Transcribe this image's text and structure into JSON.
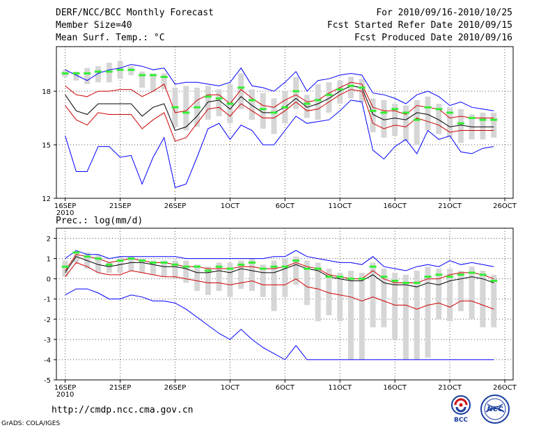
{
  "header": {
    "title": "DERF/NCC/BCC Monthly Forecast",
    "member_size": "Member Size=40",
    "variable": "Mean Surf. Temp.: °C",
    "period": "For 2010/09/16-2010/10/25",
    "started": "Fcst Started Refer Date 2010/09/15",
    "produced": "Fcst Produced Date 2010/09/16"
  },
  "footer": {
    "url": "http://cmdp.ncc.cma.gov.cn",
    "credit": "GrADS: COLA/IGES",
    "logo_left": "BCC",
    "logo_right": "NCC"
  },
  "colors": {
    "envelope": "#0000ff",
    "spread": "#cc0000",
    "mean": "#000000",
    "member_marker": "#33ee33",
    "box": "#d6d6d6",
    "grid": "#555555"
  },
  "chart_data": [
    {
      "type": "line",
      "title": "",
      "ylabel": "Mean Surf. Temp.: °C",
      "xlabel": "",
      "ylim": [
        12,
        20.5
      ],
      "yticks": [
        12,
        15,
        18
      ],
      "xlim": [
        16,
        56
      ],
      "xticks": [
        {
          "day": 16,
          "label": "16SEP"
        },
        {
          "day": 21,
          "label": "21SEP"
        },
        {
          "day": 26,
          "label": "26SEP"
        },
        {
          "day": 31,
          "label": "1OCT"
        },
        {
          "day": 36,
          "label": "6OCT"
        },
        {
          "day": 41,
          "label": "11OCT"
        },
        {
          "day": 46,
          "label": "16OCT"
        },
        {
          "day": 51,
          "label": "21OCT"
        },
        {
          "day": 56,
          "label": "26OCT"
        }
      ],
      "year_label": "2010",
      "grid": true,
      "x": [
        16,
        17,
        18,
        19,
        20,
        21,
        22,
        23,
        24,
        25,
        26,
        27,
        28,
        29,
        30,
        31,
        32,
        33,
        34,
        35,
        36,
        37,
        38,
        39,
        40,
        41,
        42,
        43,
        44,
        45,
        46,
        47,
        48,
        49,
        50,
        51,
        52,
        53,
        54,
        55
      ],
      "series": [
        {
          "name": "max",
          "role": "envelope",
          "values": [
            19.2,
            18.9,
            18.6,
            19.0,
            19.2,
            19.3,
            19.5,
            19.4,
            19.2,
            19.3,
            18.4,
            18.5,
            18.5,
            18.4,
            18.3,
            18.5,
            19.3,
            18.3,
            18.2,
            18.0,
            18.5,
            19.1,
            18.0,
            18.6,
            18.7,
            18.9,
            19.0,
            18.9,
            17.9,
            17.8,
            17.6,
            17.3,
            17.8,
            18.0,
            17.7,
            17.2,
            17.4,
            17.1,
            17.0,
            16.9
          ]
        },
        {
          "name": "upper",
          "role": "spread",
          "values": [
            18.3,
            17.8,
            17.7,
            18.0,
            18.0,
            18.1,
            18.1,
            17.7,
            18.0,
            18.4,
            16.8,
            16.9,
            17.5,
            17.8,
            17.8,
            17.3,
            18.1,
            17.6,
            17.2,
            17.1,
            17.5,
            17.8,
            17.4,
            17.5,
            17.9,
            18.2,
            18.5,
            18.4,
            17.1,
            16.9,
            16.9,
            16.7,
            17.2,
            17.1,
            17.0,
            16.5,
            16.6,
            16.5,
            16.5,
            16.5
          ]
        },
        {
          "name": "mean",
          "role": "mean",
          "values": [
            17.8,
            16.9,
            16.7,
            17.3,
            17.3,
            17.3,
            17.3,
            16.6,
            17.1,
            17.3,
            15.8,
            16.0,
            16.6,
            17.4,
            17.5,
            17.0,
            17.7,
            17.2,
            16.8,
            16.8,
            17.1,
            17.6,
            17.1,
            17.3,
            17.6,
            18.0,
            18.3,
            18.2,
            16.7,
            16.4,
            16.5,
            16.4,
            16.8,
            16.7,
            16.4,
            16.0,
            16.1,
            16.0,
            16.0,
            16.0
          ]
        },
        {
          "name": "lower",
          "role": "spread",
          "values": [
            17.2,
            16.4,
            16.1,
            16.8,
            16.7,
            16.7,
            16.7,
            15.9,
            16.4,
            16.8,
            15.2,
            15.4,
            16.2,
            17.0,
            17.1,
            16.6,
            17.3,
            16.9,
            16.5,
            16.5,
            16.9,
            17.4,
            16.9,
            17.0,
            17.4,
            17.8,
            18.1,
            18.0,
            16.2,
            15.9,
            16.1,
            16.0,
            16.5,
            16.3,
            16.1,
            15.7,
            15.8,
            15.8,
            15.8,
            15.8
          ]
        },
        {
          "name": "min",
          "role": "envelope",
          "values": [
            15.5,
            13.5,
            13.5,
            14.9,
            14.9,
            14.3,
            14.4,
            12.8,
            14.3,
            15.4,
            12.6,
            12.8,
            14.3,
            15.9,
            16.2,
            15.3,
            16.1,
            15.8,
            15.0,
            15.0,
            15.8,
            16.6,
            16.2,
            16.3,
            16.4,
            16.9,
            17.5,
            17.4,
            14.7,
            14.2,
            14.9,
            15.3,
            14.5,
            15.8,
            15.3,
            15.5,
            14.6,
            14.5,
            14.8,
            14.9
          ]
        }
      ],
      "markers": {
        "name": "member",
        "role": "member_marker",
        "values": [
          19.0,
          19.0,
          19.0,
          19.1,
          19.1,
          19.2,
          19.2,
          18.9,
          18.9,
          18.8,
          17.1,
          16.8,
          17.1,
          17.7,
          17.6,
          17.3,
          18.2,
          17.5,
          17.0,
          16.8,
          17.1,
          18.0,
          17.3,
          17.5,
          17.8,
          18.1,
          18.3,
          18.2,
          16.9,
          16.8,
          17.0,
          16.8,
          16.4,
          17.1,
          17.0,
          16.8,
          16.2,
          16.5,
          16.4,
          16.4
        ]
      },
      "boxes": {
        "name": "ensemble-range",
        "role": "box",
        "low": [
          18.8,
          18.6,
          18.4,
          18.5,
          18.5,
          18.7,
          18.9,
          18.2,
          18.0,
          18.1,
          16.0,
          15.8,
          16.0,
          16.4,
          16.6,
          16.2,
          17.0,
          16.4,
          15.9,
          15.6,
          16.2,
          17.0,
          16.5,
          16.4,
          16.8,
          17.3,
          17.6,
          17.4,
          15.7,
          15.4,
          15.5,
          15.2,
          15.0,
          15.8,
          15.6,
          15.4,
          15.1,
          15.3,
          15.3,
          15.4
        ],
        "high": [
          19.2,
          19.1,
          19.3,
          19.4,
          19.6,
          19.7,
          19.4,
          19.1,
          19.0,
          19.0,
          18.2,
          18.3,
          18.2,
          18.3,
          18.1,
          18.4,
          19.0,
          18.1,
          17.9,
          17.6,
          18.0,
          18.8,
          17.8,
          18.4,
          18.5,
          18.6,
          18.8,
          18.7,
          17.6,
          17.5,
          17.3,
          17.2,
          17.5,
          17.7,
          17.3,
          17.1,
          17.0,
          16.7,
          16.8,
          16.8
        ]
      }
    },
    {
      "type": "line",
      "title": "",
      "ylabel": "Prec.: log(mm/d)",
      "xlabel": "",
      "ylim": [
        -5,
        2.5
      ],
      "yticks": [
        -5,
        -4,
        -3,
        -2,
        -1,
        0,
        1,
        2
      ],
      "xlim": [
        16,
        56
      ],
      "xticks": [
        {
          "day": 16,
          "label": "16SEP"
        },
        {
          "day": 21,
          "label": "21SEP"
        },
        {
          "day": 26,
          "label": "26SEP"
        },
        {
          "day": 31,
          "label": "1OCT"
        },
        {
          "day": 36,
          "label": "6OCT"
        },
        {
          "day": 41,
          "label": "11OCT"
        },
        {
          "day": 46,
          "label": "16OCT"
        },
        {
          "day": 51,
          "label": "21OCT"
        },
        {
          "day": 56,
          "label": "26OCT"
        }
      ],
      "year_label": "2010",
      "grid": true,
      "x": [
        16,
        17,
        18,
        19,
        20,
        21,
        22,
        23,
        24,
        25,
        26,
        27,
        28,
        29,
        30,
        31,
        32,
        33,
        34,
        35,
        36,
        37,
        38,
        39,
        40,
        41,
        42,
        43,
        44,
        45,
        46,
        47,
        48,
        49,
        50,
        51,
        52,
        53,
        54,
        55
      ],
      "series": [
        {
          "name": "max",
          "role": "envelope",
          "values": [
            1.0,
            1.4,
            1.2,
            1.2,
            1.0,
            1.1,
            1.1,
            1.1,
            1.1,
            1.1,
            1.1,
            1.0,
            1.0,
            1.0,
            1.0,
            1.0,
            1.0,
            1.0,
            1.0,
            1.1,
            1.1,
            1.4,
            1.1,
            1.0,
            0.9,
            0.8,
            0.8,
            0.7,
            1.1,
            0.6,
            0.5,
            0.4,
            0.6,
            0.7,
            0.6,
            0.9,
            0.7,
            0.8,
            0.7,
            0.6
          ]
        },
        {
          "name": "upper",
          "role": "spread",
          "values": [
            0.4,
            1.2,
            1.1,
            1.0,
            0.8,
            0.9,
            1.0,
            0.9,
            0.8,
            0.8,
            0.7,
            0.6,
            0.6,
            0.5,
            0.5,
            0.5,
            0.6,
            0.6,
            0.5,
            0.5,
            0.6,
            0.8,
            0.6,
            0.5,
            0.2,
            0.1,
            0.0,
            0.0,
            0.4,
            0.0,
            -0.2,
            -0.2,
            -0.2,
            0.0,
            0.0,
            0.2,
            0.3,
            0.3,
            0.2,
            0.0
          ]
        },
        {
          "name": "mean",
          "role": "mean",
          "values": [
            0.3,
            1.1,
            0.9,
            0.7,
            0.6,
            0.7,
            0.8,
            0.8,
            0.7,
            0.6,
            0.6,
            0.5,
            0.3,
            0.3,
            0.4,
            0.3,
            0.5,
            0.4,
            0.3,
            0.3,
            0.5,
            0.7,
            0.5,
            0.4,
            0.1,
            0.0,
            -0.1,
            -0.1,
            0.2,
            -0.2,
            -0.3,
            -0.3,
            -0.4,
            -0.2,
            -0.3,
            -0.1,
            0.0,
            0.1,
            0.0,
            -0.2
          ]
        },
        {
          "name": "lower",
          "role": "spread",
          "values": [
            0.1,
            0.8,
            0.6,
            0.3,
            0.2,
            0.2,
            0.4,
            0.3,
            0.2,
            0.1,
            0.1,
            0.0,
            -0.1,
            -0.2,
            -0.2,
            -0.3,
            -0.2,
            -0.1,
            -0.3,
            -0.3,
            -0.3,
            0.0,
            -0.4,
            -0.5,
            -0.7,
            -0.8,
            -0.9,
            -1.1,
            -0.9,
            -1.1,
            -1.3,
            -1.3,
            -1.5,
            -1.3,
            -1.2,
            -1.4,
            -1.1,
            -1.1,
            -1.3,
            -1.5
          ]
        },
        {
          "name": "min",
          "role": "envelope",
          "values": [
            -0.8,
            -0.5,
            -0.5,
            -0.7,
            -1.0,
            -1.0,
            -0.8,
            -0.9,
            -1.1,
            -1.1,
            -1.2,
            -1.5,
            -1.9,
            -2.3,
            -2.7,
            -3.0,
            -2.5,
            -3.0,
            -3.4,
            -3.7,
            -4.0,
            -3.3,
            -4.0,
            -4.0,
            -4.0,
            -4.0,
            -4.0,
            -4.0,
            -4.0,
            -4.0,
            -4.0,
            -4.0,
            -4.0,
            -4.0,
            -4.0,
            -4.0,
            -4.0,
            -4.0,
            -4.0,
            -4.0
          ]
        }
      ],
      "markers": {
        "name": "member",
        "role": "member_marker",
        "values": [
          0.6,
          1.3,
          1.1,
          1.0,
          0.7,
          0.9,
          1.0,
          0.9,
          0.8,
          0.8,
          0.7,
          0.6,
          0.6,
          0.4,
          0.6,
          0.5,
          0.7,
          0.8,
          0.5,
          0.6,
          0.6,
          0.9,
          0.5,
          0.5,
          0.1,
          0.1,
          0.0,
          0.0,
          0.6,
          0.1,
          -0.1,
          -0.2,
          -0.2,
          0.1,
          0.2,
          0.1,
          0.2,
          0.3,
          0.2,
          -0.1
        ]
      },
      "boxes": {
        "name": "ensemble-range",
        "role": "box",
        "low": [
          0.1,
          0.8,
          0.5,
          0.3,
          0.3,
          0.3,
          0.4,
          0.3,
          0.2,
          0.1,
          0.0,
          -0.2,
          -0.6,
          -0.8,
          -0.6,
          -0.9,
          -0.5,
          -0.6,
          -0.9,
          -1.6,
          -0.9,
          -0.3,
          -1.3,
          -2.1,
          -1.8,
          -2.1,
          -4.0,
          -4.0,
          -2.4,
          -2.4,
          -3.0,
          -4.0,
          -4.0,
          -3.9,
          -2.0,
          -2.1,
          -1.6,
          -2.0,
          -2.4,
          -2.4
        ],
        "high": [
          0.9,
          1.3,
          1.3,
          1.2,
          0.8,
          1.1,
          1.1,
          1.0,
          0.9,
          0.9,
          0.9,
          0.9,
          0.7,
          0.6,
          0.8,
          0.8,
          0.9,
          1.0,
          0.7,
          0.9,
          1.0,
          1.1,
          0.9,
          0.8,
          0.5,
          0.3,
          0.4,
          0.3,
          0.8,
          0.5,
          0.3,
          0.2,
          0.4,
          0.6,
          0.5,
          0.5,
          0.4,
          0.6,
          0.4,
          0.2
        ]
      }
    }
  ]
}
